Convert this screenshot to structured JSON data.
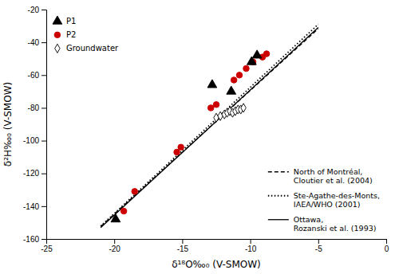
{
  "chart_data": {
    "type": "scatter",
    "x_label": "δ¹⁸O‰₀ (V-SMOW)",
    "y_label": "δ²H‰₀ (V-SMOW)",
    "xlim": [
      -25,
      0
    ],
    "ylim": [
      -160,
      -20
    ],
    "xticks": [
      -25,
      -20,
      -15,
      -10,
      -5,
      0
    ],
    "yticks": [
      -160,
      -140,
      -120,
      -100,
      -80,
      -60,
      -40,
      -20
    ],
    "grid": false,
    "legend": "upper left",
    "series": [
      {
        "name": "P1",
        "type": "scatter",
        "marker": "triangle",
        "color": "black",
        "x": [
          -19.9,
          -12.8,
          -11.4,
          -9.9,
          -9.5
        ],
        "values": [
          -148,
          -66,
          -70,
          -52,
          -48
        ]
      },
      {
        "name": "P2",
        "type": "scatter",
        "marker": "circle",
        "color": "#cc0000",
        "x": [
          -19.3,
          -18.5,
          -15.4,
          -15.1,
          -12.9,
          -12.5,
          -11.2,
          -10.8,
          -10.3,
          -9.8,
          -9.1,
          -8.8
        ],
        "values": [
          -143,
          -131,
          -107,
          -104,
          -80,
          -78,
          -63,
          -60,
          -56,
          -52,
          -49,
          -47
        ]
      },
      {
        "name": "Groundwater",
        "type": "scatter",
        "marker": "diamond",
        "color": "white",
        "x": [
          -12.5,
          -12.2,
          -11.9,
          -11.7,
          -11.5,
          -11.3,
          -11.1,
          -10.9,
          -10.7,
          -10.5
        ],
        "values": [
          -86,
          -85,
          -84,
          -83,
          -82,
          -83,
          -82,
          -81,
          -81,
          -80
        ]
      },
      {
        "name": "North of Montréal,\nCloutier et al. (2004)",
        "type": "line",
        "line_style": "dashed",
        "color": "black",
        "x": [
          -21.0,
          -5.0
        ],
        "values": [
          -152.34,
          -31.7
        ]
      },
      {
        "name": "Ste-Agathe-des-Monts,\nIAEA/WHO (2001)",
        "type": "line",
        "line_style": "dotted",
        "color": "black",
        "x": [
          -21.0,
          -5.0
        ],
        "values": [
          -152.2,
          -29
        ]
      },
      {
        "name": "Ottawa,\nRozanski et al. (1993)",
        "type": "line",
        "line_style": "solid",
        "color": "black",
        "x": [
          -21.0,
          -5.0
        ],
        "values": [
          -153.03,
          -30.95
        ]
      }
    ]
  }
}
